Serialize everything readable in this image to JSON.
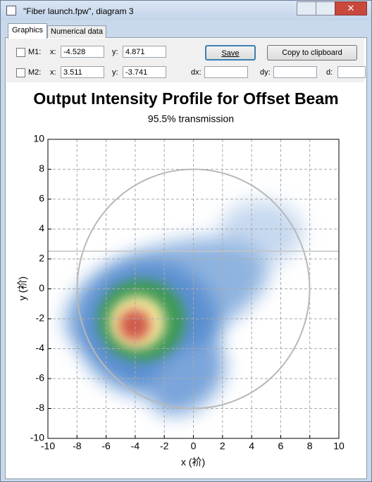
{
  "window": {
    "title": "\"Fiber launch.fpw\", diagram 3"
  },
  "tabs": [
    "Graphics",
    "Numerical data"
  ],
  "markers": [
    {
      "label": "M1:",
      "x_label": "x:",
      "x": "-4.528",
      "y_label": "y:",
      "y": "4.871"
    },
    {
      "label": "M2:",
      "x_label": "x:",
      "x": "3.511",
      "y_label": "y:",
      "y": "-3.741"
    }
  ],
  "buttons": {
    "save": "Save",
    "copy": "Copy to clipboard"
  },
  "deltas": [
    "dx:",
    "dy:",
    "d:"
  ],
  "chart_data": {
    "type": "heatmap",
    "title": "Output Intensity Profile for Offset Beam",
    "subtitle": "95.5% transmission",
    "xlabel": "x (衸)",
    "ylabel": "y (衸)",
    "xlim": [
      -10,
      10
    ],
    "ylim": [
      -10,
      10
    ],
    "xticks": [
      -10,
      -8,
      -6,
      -4,
      -2,
      0,
      2,
      4,
      6,
      8,
      10
    ],
    "yticks": [
      -10,
      -8,
      -6,
      -4,
      -2,
      0,
      2,
      4,
      6,
      8,
      10
    ],
    "grid": true
  }
}
